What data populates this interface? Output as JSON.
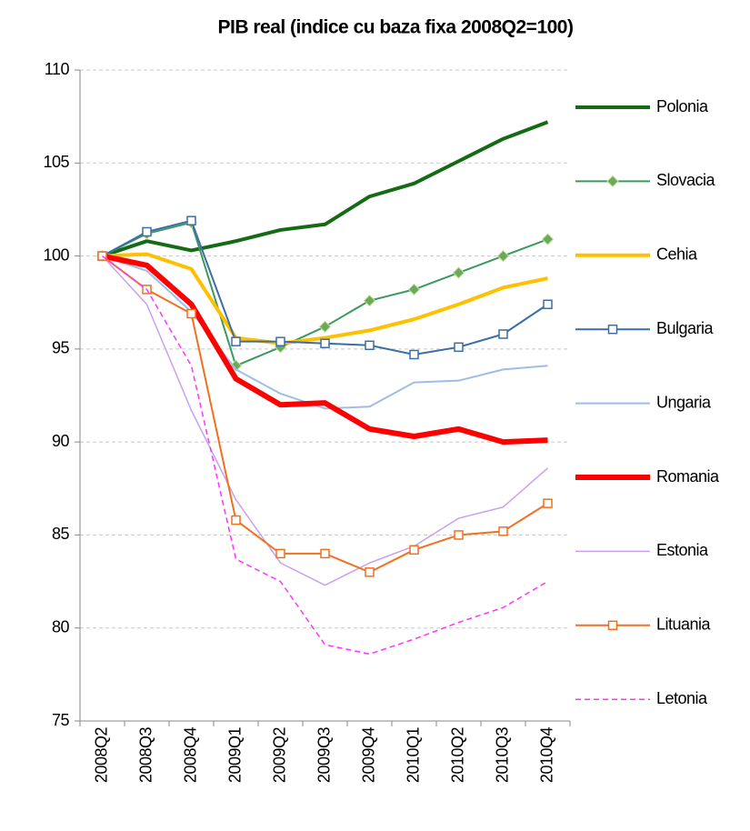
{
  "chart_data": {
    "type": "line",
    "title": "PIB real (indice cu baza fixa 2008Q2=100)",
    "categories": [
      "2008Q2",
      "2008Q3",
      "2008Q4",
      "2009Q1",
      "2009Q2",
      "2009Q3",
      "2009Q4",
      "2010Q1",
      "2010Q2",
      "2010Q3",
      "2010Q4"
    ],
    "ylim": [
      75,
      110
    ],
    "yticks": [
      75,
      80,
      85,
      90,
      95,
      100,
      105,
      110
    ],
    "grid": true,
    "legend": "right",
    "series": [
      {
        "name": "Polonia",
        "color": "#156b15",
        "values": [
          100,
          100.8,
          100.3,
          100.8,
          101.4,
          101.7,
          103.2,
          103.9,
          105.1,
          106.3,
          107.2
        ]
      },
      {
        "name": "Slovacia",
        "color": "#3a9a5c",
        "marker": "diamond",
        "values": [
          100,
          101.2,
          101.8,
          94.1,
          95.1,
          96.2,
          97.6,
          98.2,
          99.1,
          100.0,
          100.9
        ]
      },
      {
        "name": "Cehia",
        "color": "#ffc000",
        "values": [
          100,
          100.1,
          99.3,
          95.6,
          95.3,
          95.6,
          96.0,
          96.6,
          97.4,
          98.3,
          98.8
        ]
      },
      {
        "name": "Bulgaria",
        "color": "#3c6ea5",
        "marker": "square",
        "values": [
          100,
          101.3,
          101.9,
          95.4,
          95.4,
          95.3,
          95.2,
          94.7,
          95.1,
          95.8,
          97.4
        ]
      },
      {
        "name": "Ungaria",
        "color": "#9dbde6",
        "values": [
          100,
          99.2,
          97.0,
          93.9,
          92.6,
          91.8,
          91.9,
          93.2,
          93.3,
          93.9,
          94.1
        ]
      },
      {
        "name": "Romania",
        "color": "#ff0000",
        "values": [
          100,
          99.5,
          97.4,
          93.4,
          92.0,
          92.1,
          90.7,
          90.3,
          90.7,
          90.0,
          90.1
        ]
      },
      {
        "name": "Estonia",
        "color": "#c8a0f0",
        "values": [
          100,
          97.4,
          91.7,
          86.9,
          83.5,
          82.3,
          83.5,
          84.4,
          85.9,
          86.5,
          88.6
        ]
      },
      {
        "name": "Lituania",
        "color": "#f07020",
        "marker": "square",
        "values": [
          100,
          98.2,
          96.9,
          85.8,
          84.0,
          84.0,
          83.0,
          84.2,
          85.0,
          85.2,
          86.7
        ]
      },
      {
        "name": "Letonia",
        "color": "#ff33ff",
        "line_style": "dashed",
        "values": [
          100,
          98.2,
          94.1,
          83.7,
          82.5,
          79.1,
          78.6,
          79.4,
          80.3,
          81.1,
          82.5
        ]
      }
    ]
  }
}
